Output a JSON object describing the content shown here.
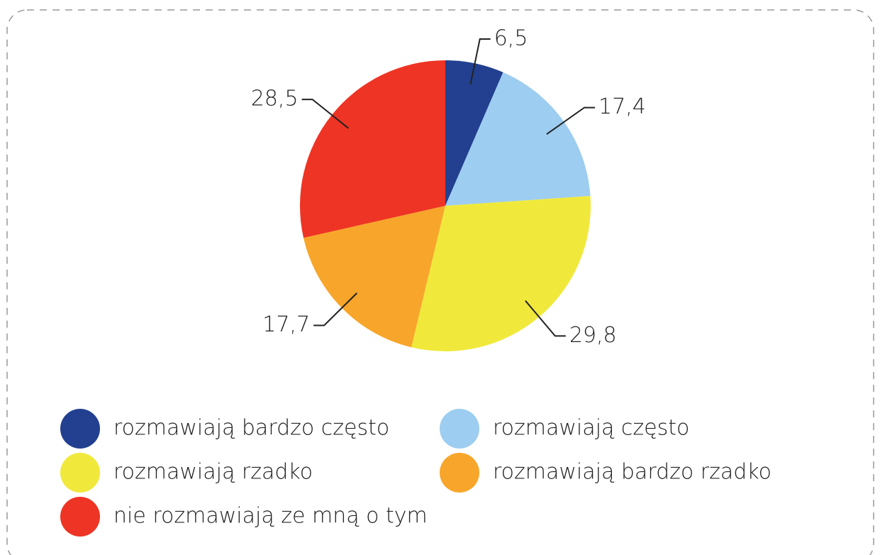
{
  "chart_data": {
    "type": "pie",
    "categories": [
      "rozmawiają bardzo często",
      "rozmawiają często",
      "rozmawiają rzadko",
      "rozmawiają bardzo rzadko",
      "nie rozmawiają ze mną o tym"
    ],
    "values": [
      6.5,
      17.4,
      29.8,
      17.7,
      28.5
    ],
    "value_labels": [
      "6,5",
      "17,4",
      "29,8",
      "17,7",
      "28,5"
    ],
    "colors": [
      "#22408f",
      "#9dcdf0",
      "#f0e93b",
      "#f7a62b",
      "#ee3424"
    ]
  }
}
